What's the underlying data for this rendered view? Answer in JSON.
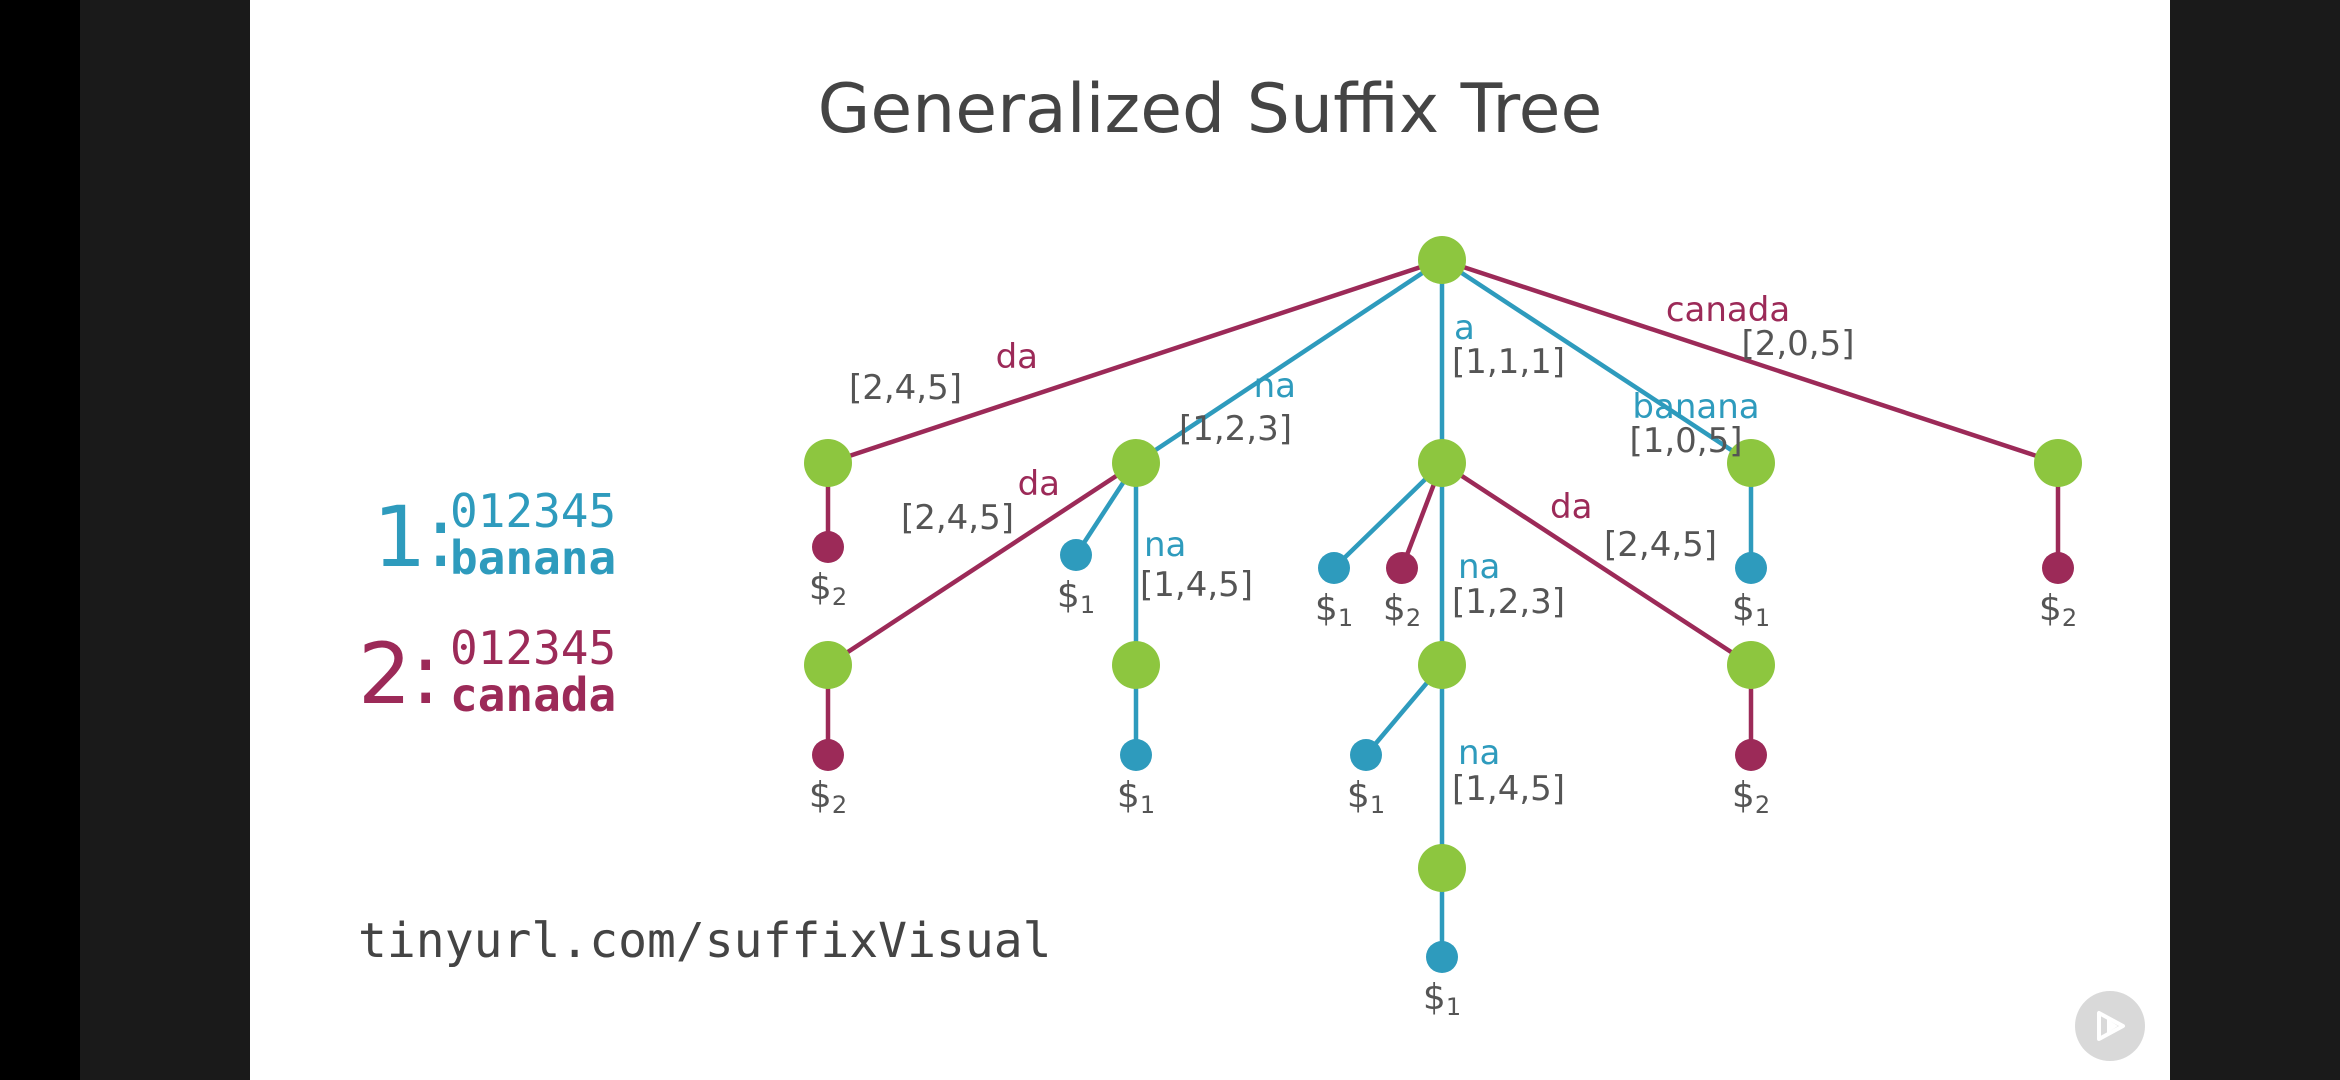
{
  "slide": {
    "title": "Generalized Suffix Tree",
    "url": "tinyurl.com/suffixVisual"
  },
  "strings": [
    {
      "index": "1:",
      "positions": "012345",
      "text": "banana",
      "color": "#2e9bbd"
    },
    {
      "index": "2:",
      "positions": "012345",
      "text": "canada",
      "color": "#9c2a58"
    }
  ],
  "colors": {
    "node": "#8dc63f",
    "string1": "#2e9bbd",
    "string2": "#9c2a58",
    "text": "#555555"
  },
  "tree": {
    "nodes": [
      {
        "id": "root",
        "kind": "internal"
      },
      {
        "id": "n_da",
        "kind": "internal"
      },
      {
        "id": "n_na",
        "kind": "internal"
      },
      {
        "id": "n_a",
        "kind": "internal"
      },
      {
        "id": "n_banana",
        "kind": "internal"
      },
      {
        "id": "n_canada",
        "kind": "internal"
      },
      {
        "id": "n_na_da",
        "kind": "internal"
      },
      {
        "id": "n_na_na",
        "kind": "internal"
      },
      {
        "id": "n_a_na",
        "kind": "internal"
      },
      {
        "id": "n_a_da",
        "kind": "internal"
      },
      {
        "id": "n_a_na_na",
        "kind": "internal"
      },
      {
        "id": "l1",
        "kind": "leaf",
        "string": 2,
        "label": "$2"
      },
      {
        "id": "l2",
        "kind": "leaf",
        "string": 1,
        "label": "$1"
      },
      {
        "id": "l3",
        "kind": "leaf",
        "string": 1,
        "label": "$1"
      },
      {
        "id": "l4",
        "kind": "leaf",
        "string": 2,
        "label": "$2"
      },
      {
        "id": "l5",
        "kind": "leaf",
        "string": 1,
        "label": "$1"
      },
      {
        "id": "l6",
        "kind": "leaf",
        "string": 2,
        "label": "$2"
      },
      {
        "id": "l7",
        "kind": "leaf",
        "string": 2,
        "label": "$2"
      },
      {
        "id": "l8",
        "kind": "leaf",
        "string": 1,
        "label": "$1"
      },
      {
        "id": "l9",
        "kind": "leaf",
        "string": 1,
        "label": "$1"
      },
      {
        "id": "l10",
        "kind": "leaf",
        "string": 2,
        "label": "$2"
      },
      {
        "id": "l11",
        "kind": "leaf",
        "string": 1,
        "label": "$1"
      }
    ],
    "edges": [
      {
        "from": "root",
        "to": "n_da",
        "string": 2,
        "label": "da",
        "ref": "[2,4,5]"
      },
      {
        "from": "root",
        "to": "n_na",
        "string": 1,
        "label": "na",
        "ref": "[1,2,3]"
      },
      {
        "from": "root",
        "to": "n_a",
        "string": 1,
        "label": "a",
        "ref": "[1,1,1]"
      },
      {
        "from": "root",
        "to": "n_banana",
        "string": 1,
        "label": "banana",
        "ref": "[1,0,5]"
      },
      {
        "from": "root",
        "to": "n_canada",
        "string": 2,
        "label": "canada",
        "ref": "[2,0,5]"
      },
      {
        "from": "n_da",
        "to": "l1",
        "string": 2,
        "label": "",
        "ref": ""
      },
      {
        "from": "n_na",
        "to": "n_na_da",
        "string": 2,
        "label": "da",
        "ref": "[2,4,5]"
      },
      {
        "from": "n_na",
        "to": "l2",
        "string": 1,
        "label": "",
        "ref": ""
      },
      {
        "from": "n_na",
        "to": "n_na_na",
        "string": 1,
        "label": "na",
        "ref": "[1,4,5]"
      },
      {
        "from": "n_na_da",
        "to": "l4",
        "string": 2,
        "label": "",
        "ref": ""
      },
      {
        "from": "n_na_na",
        "to": "l5",
        "string": 1,
        "label": "",
        "ref": ""
      },
      {
        "from": "n_a",
        "to": "l3",
        "string": 1,
        "label": "",
        "ref": ""
      },
      {
        "from": "n_a",
        "to": "l6",
        "string": 2,
        "label": "",
        "ref": ""
      },
      {
        "from": "n_a",
        "to": "n_a_na",
        "string": 1,
        "label": "na",
        "ref": "[1,2,3]"
      },
      {
        "from": "n_a",
        "to": "n_a_da",
        "string": 2,
        "label": "da",
        "ref": "[2,4,5]"
      },
      {
        "from": "n_a_na",
        "to": "l8",
        "string": 1,
        "label": "",
        "ref": ""
      },
      {
        "from": "n_a_na",
        "to": "n_a_na_na",
        "string": 1,
        "label": "na",
        "ref": "[1,4,5]"
      },
      {
        "from": "n_a_na_na",
        "to": "l11",
        "string": 1,
        "label": "",
        "ref": ""
      },
      {
        "from": "n_a_da",
        "to": "l10",
        "string": 2,
        "label": "",
        "ref": ""
      },
      {
        "from": "n_banana",
        "to": "l9",
        "string": 1,
        "label": "",
        "ref": ""
      },
      {
        "from": "n_canada",
        "to": "l7",
        "string": 2,
        "label": "",
        "ref": ""
      }
    ]
  }
}
